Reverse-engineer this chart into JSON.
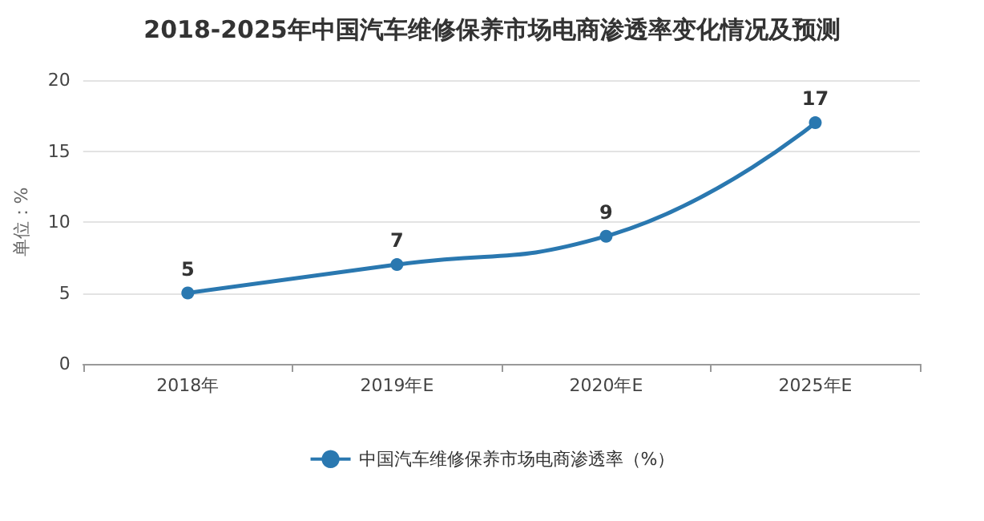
{
  "chart_data": {
    "type": "line",
    "title": "2018-2025年中国汽车维修保养市场电商渗透率变化情况及预测",
    "ylabel": "单位：%",
    "categories": [
      "2018年",
      "2019年E",
      "2020年E",
      "2025年E"
    ],
    "series": [
      {
        "name": "中国汽车维修保养市场电商渗透率（%）",
        "color": "#2a78b0",
        "values": [
          5,
          7,
          9,
          17
        ]
      }
    ],
    "ylim": [
      0,
      20
    ],
    "yticks": [
      0,
      5,
      10,
      15,
      20
    ],
    "grid": "y",
    "legend": "bottom",
    "marker": "circle",
    "line_style": "solid",
    "data_labels": true
  }
}
